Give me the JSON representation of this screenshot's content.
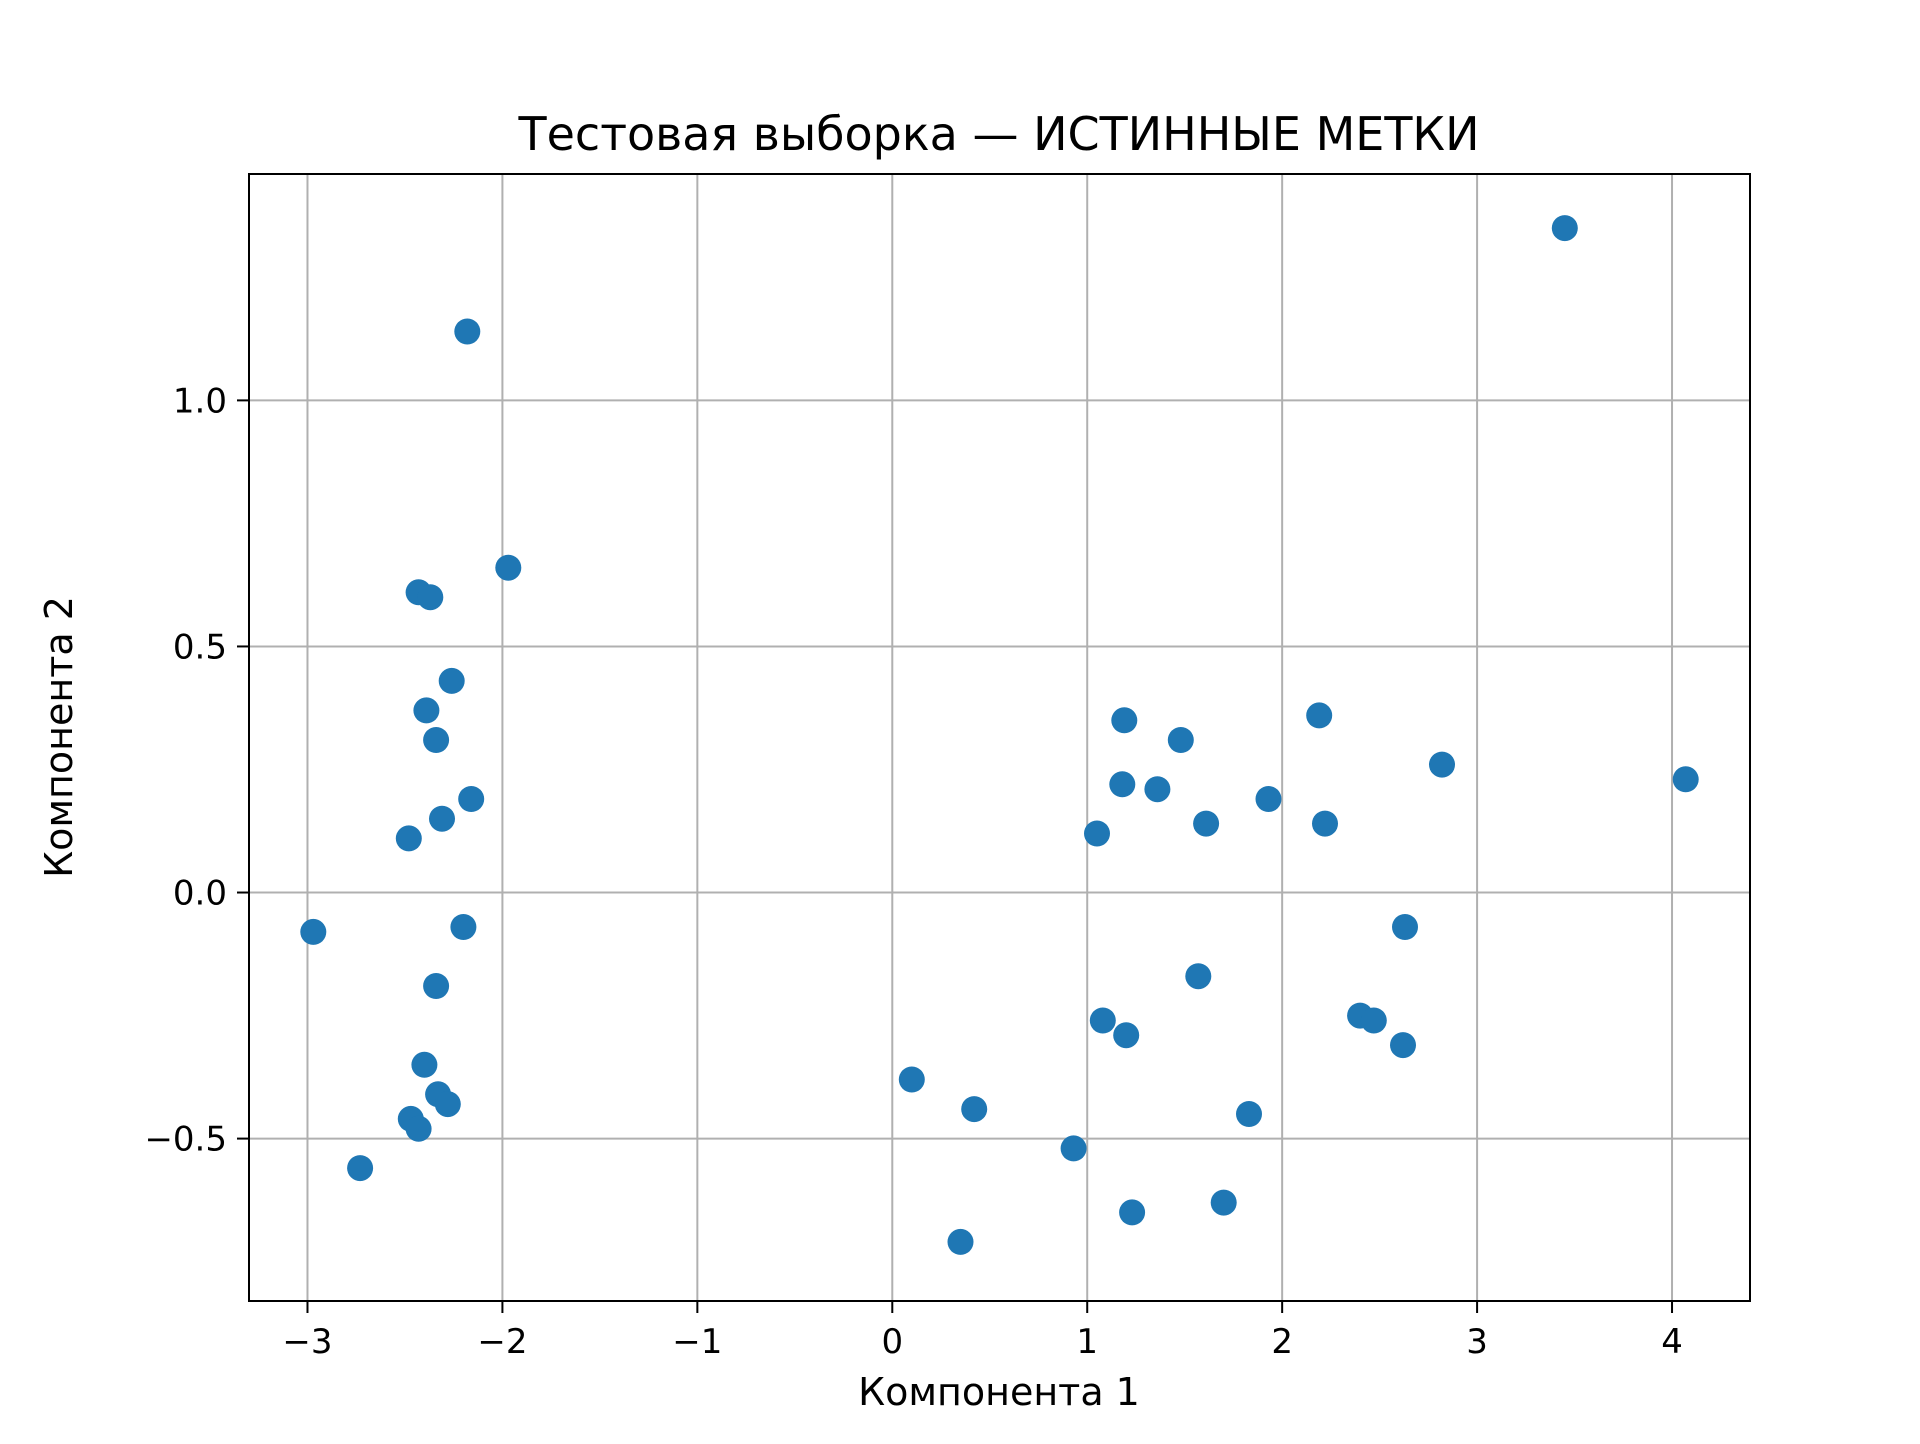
{
  "chart_data": {
    "type": "scatter",
    "title": "Тестовая выборка — ИСТИННЫЕ МЕТКИ",
    "xlabel": "Компонента 1",
    "ylabel": "Компонента 2",
    "xlim": [
      -3.3,
      4.4
    ],
    "ylim": [
      -0.83,
      1.46
    ],
    "xticks": [
      -3,
      -2,
      -1,
      0,
      1,
      2,
      3,
      4
    ],
    "xtick_labels": [
      "−3",
      "−2",
      "−1",
      "0",
      "1",
      "2",
      "3",
      "4"
    ],
    "yticks": [
      -0.5,
      0.0,
      0.5,
      1.0
    ],
    "ytick_labels": [
      "−0.5",
      "0.0",
      "0.5",
      "1.0"
    ],
    "grid": true,
    "legend_position": "none",
    "marker_color": "#1f77b4",
    "marker_radius": 13,
    "grid_color": "#b0b0b0",
    "spine_color": "#000000",
    "points": [
      [
        -2.97,
        -0.08
      ],
      [
        -2.73,
        -0.56
      ],
      [
        -2.18,
        1.14
      ],
      [
        -1.97,
        0.66
      ],
      [
        -2.43,
        0.61
      ],
      [
        -2.37,
        0.6
      ],
      [
        -2.26,
        0.43
      ],
      [
        -2.39,
        0.37
      ],
      [
        -2.34,
        0.31
      ],
      [
        -2.16,
        0.19
      ],
      [
        -2.31,
        0.15
      ],
      [
        -2.48,
        0.11
      ],
      [
        -2.2,
        -0.07
      ],
      [
        -2.34,
        -0.19
      ],
      [
        -2.4,
        -0.35
      ],
      [
        -2.33,
        -0.41
      ],
      [
        -2.28,
        -0.43
      ],
      [
        -2.47,
        -0.46
      ],
      [
        -2.43,
        -0.48
      ],
      [
        0.1,
        -0.38
      ],
      [
        0.42,
        -0.44
      ],
      [
        0.35,
        -0.71
      ],
      [
        0.93,
        -0.52
      ],
      [
        1.23,
        -0.65
      ],
      [
        1.7,
        -0.63
      ],
      [
        1.83,
        -0.45
      ],
      [
        1.57,
        -0.17
      ],
      [
        1.08,
        -0.26
      ],
      [
        1.2,
        -0.29
      ],
      [
        1.05,
        0.12
      ],
      [
        1.18,
        0.22
      ],
      [
        1.36,
        0.21
      ],
      [
        1.19,
        0.35
      ],
      [
        1.48,
        0.31
      ],
      [
        1.61,
        0.14
      ],
      [
        1.93,
        0.19
      ],
      [
        2.19,
        0.36
      ],
      [
        2.22,
        0.14
      ],
      [
        2.4,
        -0.25
      ],
      [
        2.47,
        -0.26
      ],
      [
        2.62,
        -0.31
      ],
      [
        2.63,
        -0.07
      ],
      [
        2.82,
        0.26
      ],
      [
        3.45,
        1.35
      ],
      [
        4.07,
        0.23
      ]
    ]
  }
}
